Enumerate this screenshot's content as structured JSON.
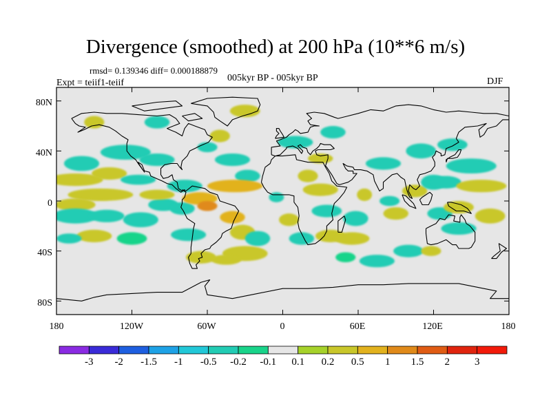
{
  "figure": {
    "title": "Divergence (smoothed) at 200 hPa (10**6 m/s)",
    "stats": "rmsd= 0.139346 diff= 0.000188879",
    "experiment": "Expt = teiif1-teiif",
    "period": "005kyr BP - 005kyr BP",
    "season": "DJF"
  },
  "axes": {
    "y_ticks": [
      "80N",
      "40N",
      "0",
      "40S",
      "80S"
    ],
    "x_ticks": [
      "180",
      "120W",
      "60W",
      "0",
      "60E",
      "120E",
      "180"
    ]
  },
  "colorbar": {
    "labels": [
      "-3",
      "-2",
      "-1.5",
      "-1",
      "-0.5",
      "-0.2",
      "-0.1",
      "0.1",
      "0.2",
      "0.5",
      "1",
      "1.5",
      "2",
      "3"
    ],
    "colors": [
      "#8a2be2",
      "#3a2bd8",
      "#1e5fe0",
      "#1ea2e6",
      "#22c8d8",
      "#22ccb4",
      "#19d48a",
      "#e6e6e6",
      "#a6d22a",
      "#c9c72a",
      "#e2b21e",
      "#e08a1a",
      "#e05c14",
      "#e0240e",
      "#f21a0a"
    ]
  },
  "map": {
    "land_outline_color": "#000000",
    "background_color": "#e6e6e6"
  }
}
